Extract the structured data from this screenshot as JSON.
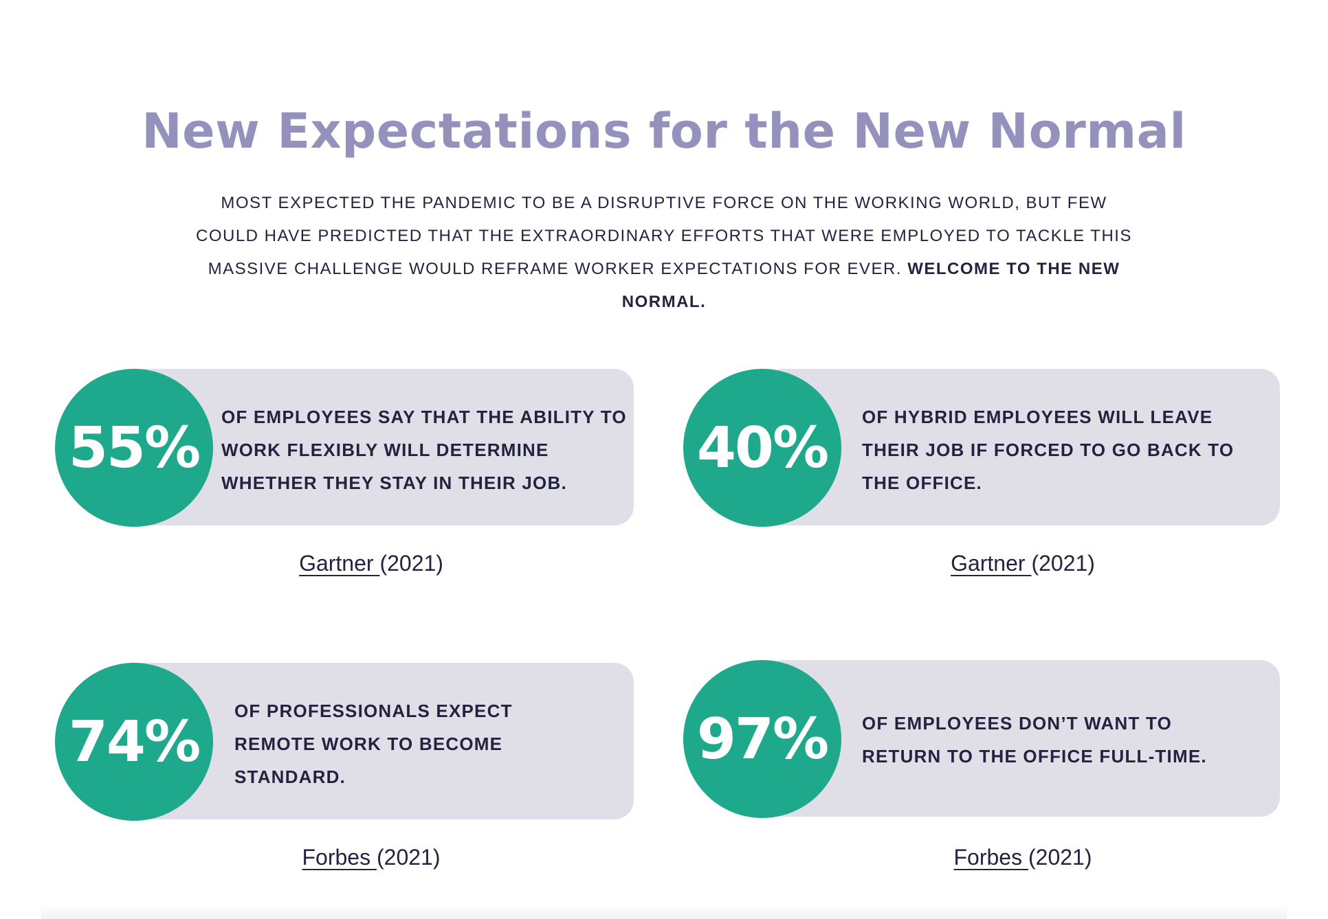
{
  "header": {
    "title": "New Expectations for the New Normal",
    "intro_text": "MOST EXPECTED THE PANDEMIC TO BE A DISRUPTIVE FORCE ON THE WORKING WORLD, BUT FEW COULD HAVE PREDICTED THAT THE EXTRAORDINARY EFFORTS THAT WERE EMPLOYED TO TACKLE THIS MASSIVE CHALLENGE WOULD REFRAME WORKER EXPECTATIONS FOR EVER.",
    "intro_emphasis": "WELCOME TO THE NEW NORMAL."
  },
  "stats": [
    {
      "percent": "55%",
      "text": "OF EMPLOYEES SAY THAT THE ABILITY TO WORK FLEXIBLY WILL DETERMINE WHETHER THEY STAY IN THEIR JOB.",
      "source_link": "Gartner ",
      "source_year": "(2021)"
    },
    {
      "percent": "40%",
      "text": "OF HYBRID EMPLOYEES WILL LEAVE THEIR JOB IF FORCED TO GO BACK TO THE OFFICE.",
      "source_link": "Gartner ",
      "source_year": "(2021)"
    },
    {
      "percent": "74%",
      "text": "OF PROFESSIONALS EXPECT REMOTE WORK TO BECOME STANDARD.",
      "source_link": "Forbes ",
      "source_year": "(2021)"
    },
    {
      "percent": "97%",
      "text": "OF EMPLOYEES DON’T WANT TO RETURN TO THE OFFICE FULL-TIME.",
      "source_link": "Forbes ",
      "source_year": "(2021)"
    }
  ],
  "colors": {
    "title": "#9591bd",
    "accent_green": "#1fa98c",
    "card_bg": "#e0dfe8",
    "text_dark": "#24233f"
  }
}
